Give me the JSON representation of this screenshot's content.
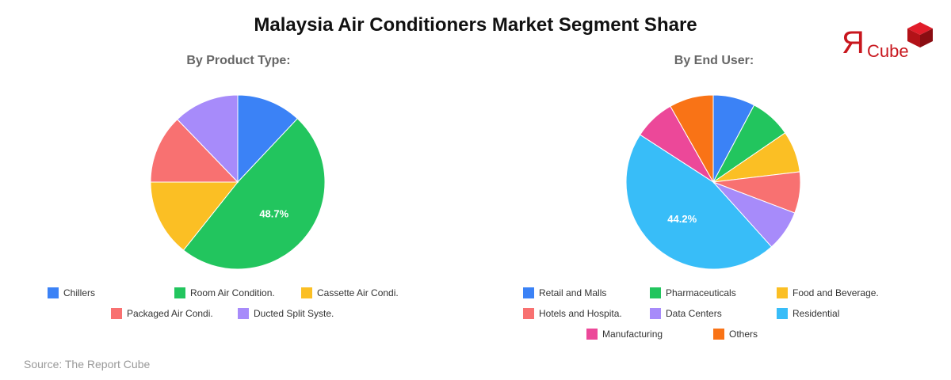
{
  "title": "Malaysia Air Conditioners Market Segment Share",
  "logo": {
    "mark": "Я",
    "text": "Cube"
  },
  "source": "Source: The Report Cube",
  "chart_data": [
    {
      "type": "pie",
      "title": "By Product Type:",
      "categories": [
        "Chillers",
        "Room Air Condition.",
        "Cassette Air Condi.",
        "Packaged Air Condi.",
        "Ducted Split Syste."
      ],
      "values": [
        12.0,
        48.7,
        14.3,
        12.8,
        12.2
      ],
      "colors": [
        "#3b82f6",
        "#22c55e",
        "#fbbf24",
        "#f87171",
        "#a78bfa"
      ],
      "data_labels": [
        "",
        "48.7%",
        "",
        "",
        ""
      ],
      "legend_position": "bottom"
    },
    {
      "type": "pie",
      "title": "By End User:",
      "categories": [
        "Retail and Malls",
        "Pharmaceuticals",
        "Food and Beverage.",
        "Hotels and Hospita.",
        "Data Centers",
        "Residential",
        "Manufacturing",
        "Others"
      ],
      "values": [
        7.5,
        7.4,
        7.4,
        7.4,
        7.3,
        44.2,
        7.4,
        7.9
      ],
      "colors": [
        "#3b82f6",
        "#22c55e",
        "#fbbf24",
        "#f87171",
        "#a78bfa",
        "#38bdf8",
        "#ec4899",
        "#f97316"
      ],
      "data_labels": [
        "",
        "",
        "",
        "",
        "",
        "44.2%",
        "",
        ""
      ],
      "legend_position": "bottom"
    }
  ]
}
